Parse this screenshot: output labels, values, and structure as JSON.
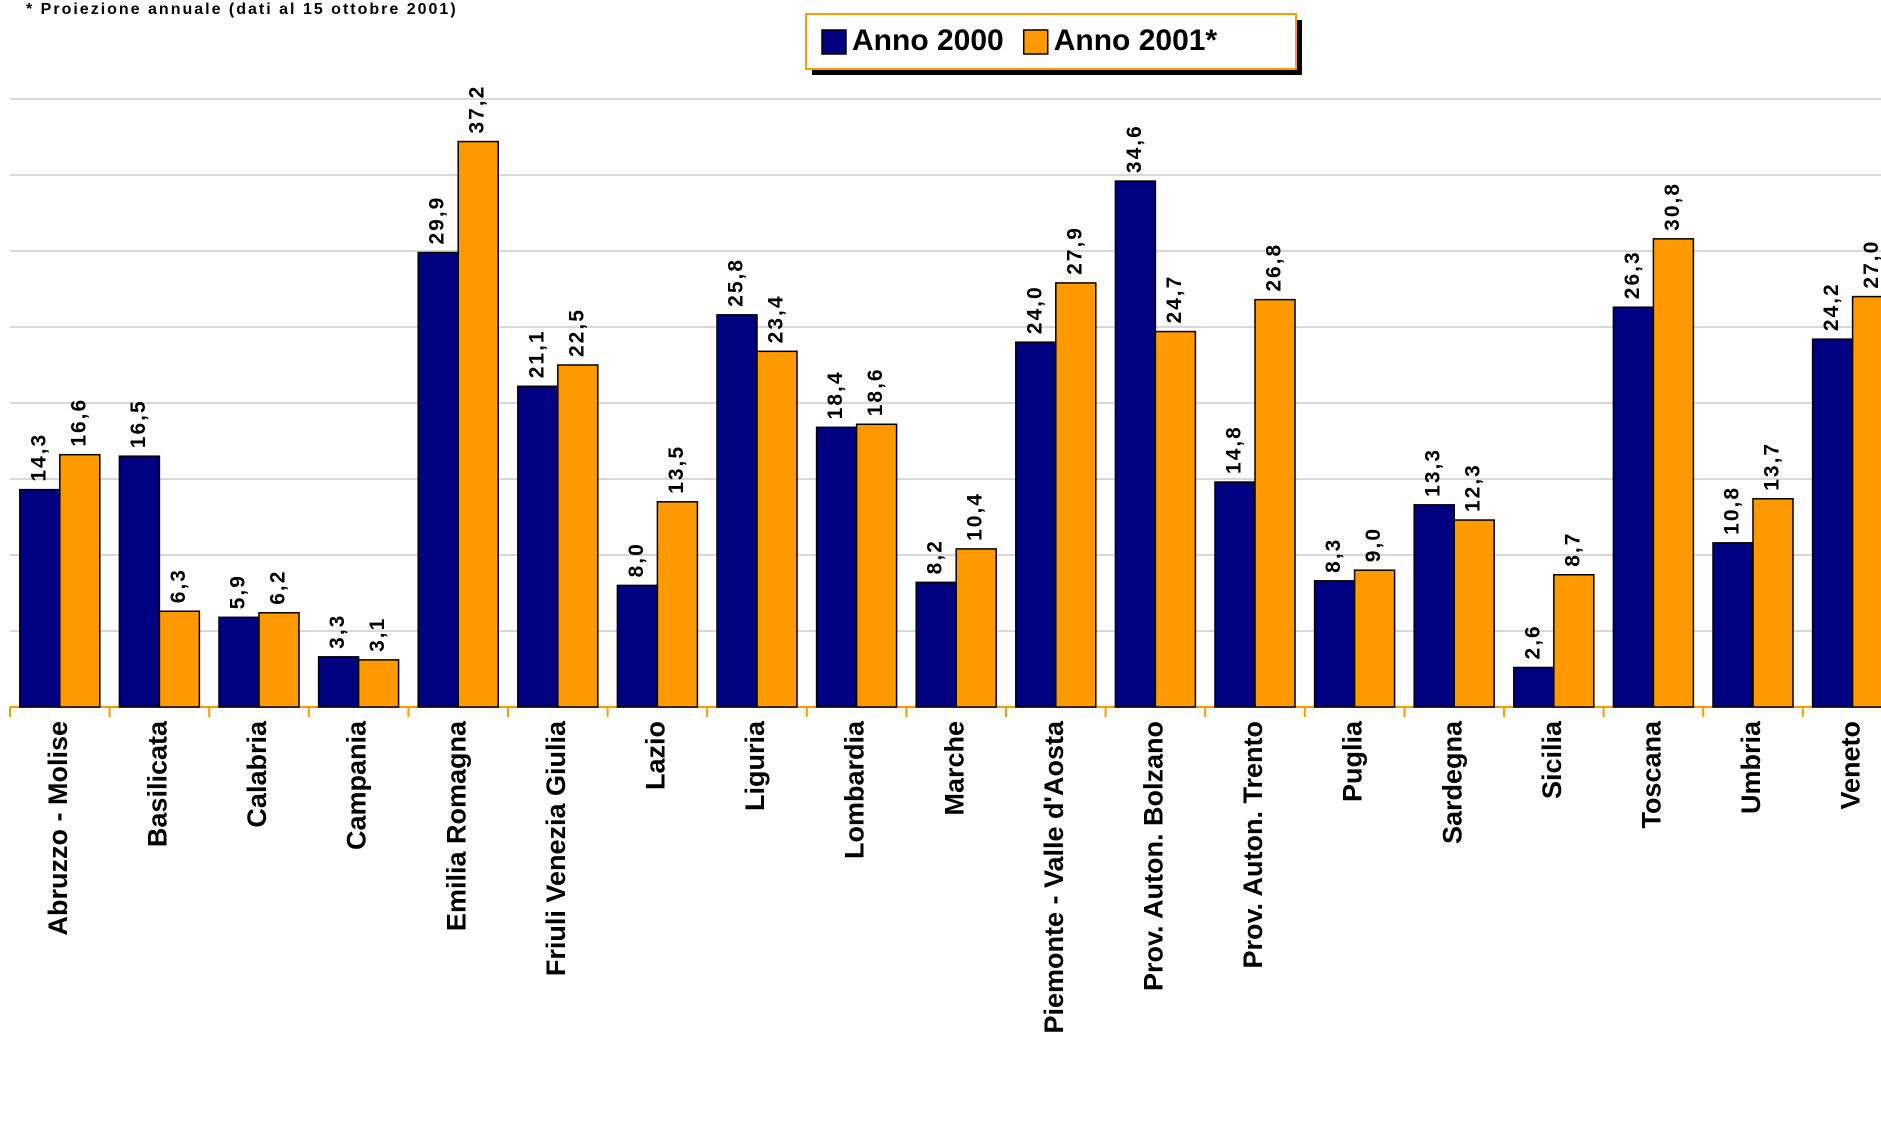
{
  "chart_data": {
    "type": "bar",
    "subtitle": "* Proiezione annuale (dati al 15 ottobre 2001)",
    "categories": [
      "Abruzzo - Molise",
      "Basilicata",
      "Calabria",
      "Campania",
      "Emilia Romagna",
      "Friuli Venezia Giulia",
      "Lazio",
      "Liguria",
      "Lombardia",
      "Marche",
      "Piemonte - Valle d'Aosta",
      "Prov. Auton. Bolzano",
      "Prov. Auton. Trento",
      "Puglia",
      "Sardegna",
      "Sicilia",
      "Toscana",
      "Umbria",
      "Veneto"
    ],
    "series": [
      {
        "name": "Anno 2000",
        "color": "#000080",
        "values": [
          14.3,
          16.5,
          5.9,
          3.3,
          29.9,
          21.1,
          8.0,
          25.8,
          18.4,
          8.2,
          24.0,
          34.6,
          14.8,
          8.3,
          13.3,
          2.6,
          26.3,
          10.8,
          24.2
        ],
        "value_labels": [
          "14,3",
          "16,5",
          "5,9",
          "3,3",
          "29,9",
          "21,1",
          "8,0",
          "25,8",
          "18,4",
          "8,2",
          "24,0",
          "34,6",
          "14,8",
          "8,3",
          "13,3",
          "2,6",
          "26,3",
          "10,8",
          "24,2"
        ]
      },
      {
        "name": "Anno 2001*",
        "color": "#ff9900",
        "values": [
          16.6,
          6.3,
          6.2,
          3.1,
          37.2,
          22.5,
          13.5,
          23.4,
          18.6,
          10.4,
          27.9,
          24.7,
          26.8,
          9.0,
          12.3,
          8.7,
          30.8,
          13.7,
          27.0
        ],
        "value_labels": [
          "16,6",
          "6,3",
          "6,2",
          "3,1",
          "37,2",
          "22,5",
          "13,5",
          "23,4",
          "18,6",
          "10,4",
          "27,9",
          "24,7",
          "26,8",
          "9,0",
          "12,3",
          "8,7",
          "30,8",
          "13,7",
          "27,0"
        ]
      }
    ],
    "ylim": [
      0,
      40
    ],
    "yticks": [
      0,
      5,
      10,
      15,
      20,
      25,
      30,
      35,
      40
    ],
    "grid": true,
    "legend": "top"
  }
}
